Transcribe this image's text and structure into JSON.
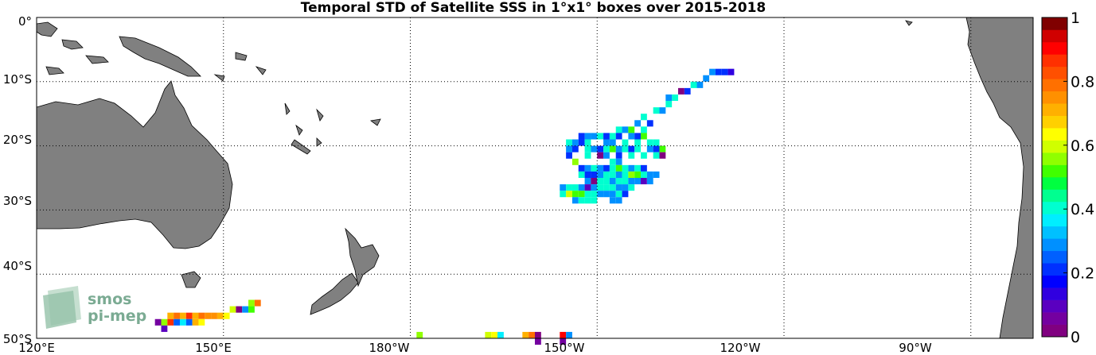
{
  "title": "Temporal STD of Satellite SSS in 1°x1° boxes over 2015-2018",
  "lon_labels": [
    "120°E",
    "150°E",
    "180°W",
    "150°W",
    "120°W",
    "90°W"
  ],
  "lat_labels": [
    "0°",
    "10°S",
    "20°S",
    "30°S",
    "40°S",
    "50°S"
  ],
  "colorbar": {
    "min": 0,
    "max": 1,
    "tick_labels": [
      "1",
      "0.8",
      "0.6",
      "0.4",
      "0.2",
      "0"
    ],
    "colors": [
      "#800080",
      "#7400a0",
      "#5a00c0",
      "#3000e0",
      "#0000ff",
      "#0030ff",
      "#0060ff",
      "#0090ff",
      "#00c0ff",
      "#00eeff",
      "#00ffd0",
      "#00ff90",
      "#00ff40",
      "#40ff00",
      "#90ff00",
      "#d0ff00",
      "#ffff00",
      "#ffd000",
      "#ffb000",
      "#ff9000",
      "#ff7000",
      "#ff5000",
      "#ff3000",
      "#ff0000",
      "#d00000",
      "#800000"
    ]
  },
  "colors": {
    "land": "#808080",
    "coast": "#000000",
    "grid": "#000000"
  },
  "logo": {
    "line1": "smos",
    "line2": "pi-mep"
  },
  "chart_data": {
    "type": "heatmap",
    "title": "Temporal STD of Satellite SSS in 1°x1° boxes over 2015-2018",
    "xlabel": "",
    "ylabel": "",
    "xlim": [
      120,
      280
    ],
    "ylim": [
      -50,
      0
    ],
    "grid": true,
    "colorbar_range": [
      0,
      1
    ],
    "cells": [
      [
        228,
        -8,
        0.3
      ],
      [
        229,
        -8,
        0.2
      ],
      [
        230,
        -8,
        0.2
      ],
      [
        231,
        -8,
        0.15
      ],
      [
        227,
        -9,
        0.3
      ],
      [
        226,
        -10,
        0.3
      ],
      [
        225,
        -10,
        0.4
      ],
      [
        224,
        -11,
        0.2
      ],
      [
        223,
        -11,
        0.0
      ],
      [
        222,
        -12,
        0.4
      ],
      [
        221,
        -12,
        0.3
      ],
      [
        221,
        -13,
        0.4
      ],
      [
        220,
        -14,
        0.3
      ],
      [
        219,
        -14,
        0.4
      ],
      [
        217,
        -15,
        0.4
      ],
      [
        218,
        -16,
        0.2
      ],
      [
        216,
        -16,
        0.3
      ],
      [
        217,
        -17,
        0.4
      ],
      [
        213,
        -17,
        0.4
      ],
      [
        214,
        -17,
        0.3
      ],
      [
        215,
        -17,
        0.5
      ],
      [
        207,
        -18,
        0.2
      ],
      [
        208,
        -18,
        0.3
      ],
      [
        209,
        -18,
        0.3
      ],
      [
        210,
        -18,
        0.4
      ],
      [
        211,
        -18,
        0.2
      ],
      [
        212,
        -18,
        0.4
      ],
      [
        213,
        -18,
        0.2
      ],
      [
        215,
        -18,
        0.3
      ],
      [
        216,
        -18,
        0.2
      ],
      [
        217,
        -18,
        0.5
      ],
      [
        205,
        -19,
        0.4
      ],
      [
        206,
        -19,
        0.3
      ],
      [
        207,
        -19,
        0.2
      ],
      [
        208,
        -19,
        0.4
      ],
      [
        211,
        -19,
        0.3
      ],
      [
        212,
        -19,
        0.3
      ],
      [
        214,
        -19,
        0.4
      ],
      [
        216,
        -19,
        0.4
      ],
      [
        218,
        -19,
        0.4
      ],
      [
        219,
        -19,
        0.4
      ],
      [
        205,
        -20,
        0.3
      ],
      [
        206,
        -20,
        0.2
      ],
      [
        208,
        -20,
        0.4
      ],
      [
        209,
        -20,
        0.3
      ],
      [
        210,
        -20,
        0.2
      ],
      [
        211,
        -20,
        0.4
      ],
      [
        212,
        -20,
        0.5
      ],
      [
        213,
        -20,
        0.3
      ],
      [
        214,
        -20,
        0.4
      ],
      [
        215,
        -20,
        0.2
      ],
      [
        216,
        -20,
        0.4
      ],
      [
        218,
        -20,
        0.3
      ],
      [
        219,
        -20,
        0.2
      ],
      [
        220,
        -20,
        0.5
      ],
      [
        205,
        -21,
        0.2
      ],
      [
        208,
        -21,
        0.4
      ],
      [
        210,
        -21,
        0.0
      ],
      [
        211,
        -21,
        0.3
      ],
      [
        213,
        -21,
        0.2
      ],
      [
        215,
        -21,
        0.4
      ],
      [
        217,
        -21,
        0.4
      ],
      [
        219,
        -21,
        0.4
      ],
      [
        220,
        -21,
        0.0
      ],
      [
        206,
        -22,
        0.55
      ],
      [
        212,
        -22,
        0.4
      ],
      [
        213,
        -22,
        0.3
      ],
      [
        207,
        -23,
        0.2
      ],
      [
        208,
        -23,
        0.3
      ],
      [
        209,
        -23,
        0.4
      ],
      [
        210,
        -23,
        0.3
      ],
      [
        211,
        -23,
        0.2
      ],
      [
        212,
        -23,
        0.4
      ],
      [
        213,
        -23,
        0.5
      ],
      [
        214,
        -23,
        0.4
      ],
      [
        215,
        -23,
        0.3
      ],
      [
        216,
        -23,
        0.4
      ],
      [
        217,
        -23,
        0.2
      ],
      [
        207,
        -24,
        0.4
      ],
      [
        208,
        -24,
        0.2
      ],
      [
        209,
        -24,
        0.2
      ],
      [
        210,
        -24,
        0.3
      ],
      [
        211,
        -24,
        0.4
      ],
      [
        212,
        -24,
        0.4
      ],
      [
        213,
        -24,
        0.3
      ],
      [
        214,
        -24,
        0.4
      ],
      [
        215,
        -24,
        0.55
      ],
      [
        216,
        -24,
        0.5
      ],
      [
        217,
        -24,
        0.4
      ],
      [
        218,
        -24,
        0.3
      ],
      [
        219,
        -24,
        0.3
      ],
      [
        208,
        -25,
        0.3
      ],
      [
        209,
        -25,
        0.0
      ],
      [
        210,
        -25,
        0.4
      ],
      [
        211,
        -25,
        0.4
      ],
      [
        212,
        -25,
        0.3
      ],
      [
        213,
        -25,
        0.4
      ],
      [
        214,
        -25,
        0.4
      ],
      [
        215,
        -25,
        0.3
      ],
      [
        216,
        -25,
        0.3
      ],
      [
        217,
        -25,
        0.1
      ],
      [
        218,
        -25,
        0.3
      ],
      [
        204,
        -26,
        0.3
      ],
      [
        205,
        -26,
        0.4
      ],
      [
        206,
        -26,
        0.4
      ],
      [
        207,
        -26,
        0.3
      ],
      [
        208,
        -26,
        0.1
      ],
      [
        209,
        -26,
        0.3
      ],
      [
        210,
        -26,
        0.4
      ],
      [
        211,
        -26,
        0.4
      ],
      [
        212,
        -26,
        0.4
      ],
      [
        213,
        -26,
        0.3
      ],
      [
        214,
        -26,
        0.3
      ],
      [
        215,
        -26,
        0.4
      ],
      [
        204,
        -27,
        0.4
      ],
      [
        205,
        -27,
        0.6
      ],
      [
        206,
        -27,
        0.5
      ],
      [
        207,
        -27,
        0.5
      ],
      [
        208,
        -27,
        0.4
      ],
      [
        209,
        -27,
        0.4
      ],
      [
        210,
        -27,
        0.3
      ],
      [
        211,
        -27,
        0.3
      ],
      [
        212,
        -27,
        0.3
      ],
      [
        213,
        -27,
        0.4
      ],
      [
        214,
        -27,
        0.2
      ],
      [
        206,
        -28,
        0.3
      ],
      [
        207,
        -28,
        0.4
      ],
      [
        208,
        -28,
        0.4
      ],
      [
        209,
        -28,
        0.4
      ],
      [
        212,
        -28,
        0.3
      ],
      [
        213,
        -28,
        0.3
      ],
      [
        154,
        -44,
        0.55
      ],
      [
        155,
        -44,
        0.8
      ],
      [
        151,
        -45,
        0.6
      ],
      [
        152,
        -45,
        0.0
      ],
      [
        153,
        -45,
        0.3
      ],
      [
        154,
        -45,
        0.5
      ],
      [
        141,
        -46,
        0.7
      ],
      [
        142,
        -46,
        0.8
      ],
      [
        143,
        -46,
        0.7
      ],
      [
        144,
        -46,
        0.85
      ],
      [
        145,
        -46,
        0.7
      ],
      [
        146,
        -46,
        0.8
      ],
      [
        147,
        -46,
        0.75
      ],
      [
        148,
        -46,
        0.75
      ],
      [
        149,
        -46,
        0.7
      ],
      [
        150,
        -46,
        0.65
      ],
      [
        139,
        -47,
        0.05
      ],
      [
        140,
        -47,
        0.55
      ],
      [
        141,
        -47,
        0.85
      ],
      [
        142,
        -47,
        0.25
      ],
      [
        143,
        -47,
        0.35
      ],
      [
        144,
        -47,
        0.25
      ],
      [
        145,
        -47,
        0.7
      ],
      [
        146,
        -47,
        0.65
      ],
      [
        140,
        -48,
        0.1
      ],
      [
        181,
        -49,
        0.55
      ],
      [
        192,
        -49,
        0.6
      ],
      [
        193,
        -49,
        0.65
      ],
      [
        194,
        -49,
        0.35
      ],
      [
        198,
        -49,
        0.7
      ],
      [
        199,
        -49,
        0.8
      ],
      [
        200,
        -49,
        0.0
      ],
      [
        204,
        -49,
        0.9
      ],
      [
        205,
        -49,
        0.3
      ],
      [
        200,
        -50,
        0.05
      ],
      [
        204,
        -50,
        0.05
      ]
    ]
  }
}
